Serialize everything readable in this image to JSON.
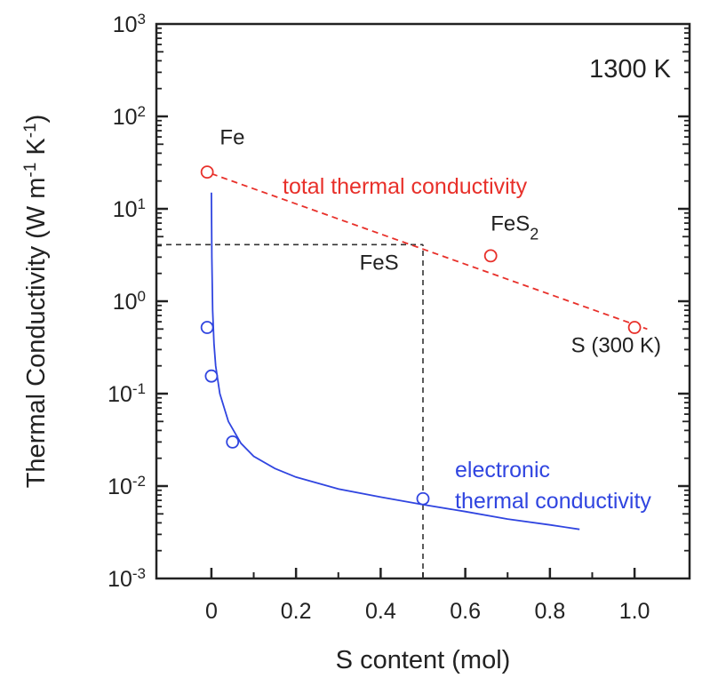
{
  "chart_data": {
    "type": "scatter",
    "title": "",
    "condition_label": "1300 K",
    "xlabel": "S content (mol)",
    "ylabel": "Thermal Conductivity (W m⁻¹ K⁻¹)",
    "ylabel_parts": {
      "prefix": "Thermal Conductivity (W m",
      "sup1": "-1",
      "mid": " K",
      "sup2": "-1",
      "suffix": ")"
    },
    "xlim": [
      -0.13,
      1.13
    ],
    "ylim": [
      0.001,
      1000
    ],
    "yscale": "log",
    "grid": false,
    "x_ticks": [
      {
        "value": 0,
        "label": "0"
      },
      {
        "value": 0.2,
        "label": "0.2"
      },
      {
        "value": 0.4,
        "label": "0.4"
      },
      {
        "value": 0.6,
        "label": "0.6"
      },
      {
        "value": 0.8,
        "label": "0.8"
      },
      {
        "value": 1.0,
        "label": "1.0"
      }
    ],
    "y_ticks": [
      {
        "value": 0.001,
        "base": "10",
        "exp": "-3"
      },
      {
        "value": 0.01,
        "base": "10",
        "exp": "-2"
      },
      {
        "value": 0.1,
        "base": "10",
        "exp": "-1"
      },
      {
        "value": 1,
        "base": "10",
        "exp": "0"
      },
      {
        "value": 10,
        "base": "10",
        "exp": "1"
      },
      {
        "value": 100,
        "base": "10",
        "exp": "2"
      },
      {
        "value": 1000,
        "base": "10",
        "exp": "3"
      }
    ],
    "series": [
      {
        "name": "total thermal conductivity",
        "color": "#e8302a",
        "markers": [
          {
            "x": -0.01,
            "y": 25
          },
          {
            "x": 0.66,
            "y": 3.1
          },
          {
            "x": 1.0,
            "y": 0.52
          }
        ],
        "trend": {
          "style": "dashed",
          "points": [
            {
              "x": 0,
              "y": 24
            },
            {
              "x": 1.03,
              "y": 0.5
            }
          ]
        }
      },
      {
        "name": "electronic thermal conductivity",
        "name_lines": [
          "electronic",
          "thermal conductivity"
        ],
        "color": "#3045e0",
        "markers": [
          {
            "x": -0.01,
            "y": 0.52
          },
          {
            "x": 0.0,
            "y": 0.155
          },
          {
            "x": 0.05,
            "y": 0.03
          },
          {
            "x": 0.5,
            "y": 0.0073
          }
        ],
        "fit_curve": [
          {
            "x": 0.0,
            "y": 15
          },
          {
            "x": 0.001,
            "y": 3
          },
          {
            "x": 0.003,
            "y": 0.8
          },
          {
            "x": 0.006,
            "y": 0.35
          },
          {
            "x": 0.01,
            "y": 0.2
          },
          {
            "x": 0.02,
            "y": 0.1
          },
          {
            "x": 0.04,
            "y": 0.05
          },
          {
            "x": 0.07,
            "y": 0.029
          },
          {
            "x": 0.1,
            "y": 0.021
          },
          {
            "x": 0.15,
            "y": 0.0155
          },
          {
            "x": 0.2,
            "y": 0.0125
          },
          {
            "x": 0.3,
            "y": 0.0093
          },
          {
            "x": 0.4,
            "y": 0.0076
          },
          {
            "x": 0.5,
            "y": 0.0063
          },
          {
            "x": 0.6,
            "y": 0.0053
          },
          {
            "x": 0.7,
            "y": 0.0044
          },
          {
            "x": 0.8,
            "y": 0.0038
          },
          {
            "x": 0.87,
            "y": 0.0034
          }
        ]
      }
    ],
    "reference_lines": {
      "color": "#333333",
      "horizontal": {
        "y": 4.1,
        "x_from": -0.13,
        "x_to": 0.5
      },
      "vertical": {
        "x": 0.5,
        "y_from": 0.001,
        "y_to": 4.1
      }
    },
    "annotations": [
      {
        "key": "fe",
        "text": "Fe",
        "x": 0.02,
        "y": 50
      },
      {
        "key": "fes",
        "text": "FeS",
        "x": 0.35,
        "y": 2.2
      },
      {
        "key": "fes2",
        "text": "FeS",
        "sub": "2",
        "x": 0.66,
        "y": 5.8
      },
      {
        "key": "s300",
        "text": "S (300 K)",
        "x": 0.85,
        "y": 0.28
      }
    ]
  }
}
